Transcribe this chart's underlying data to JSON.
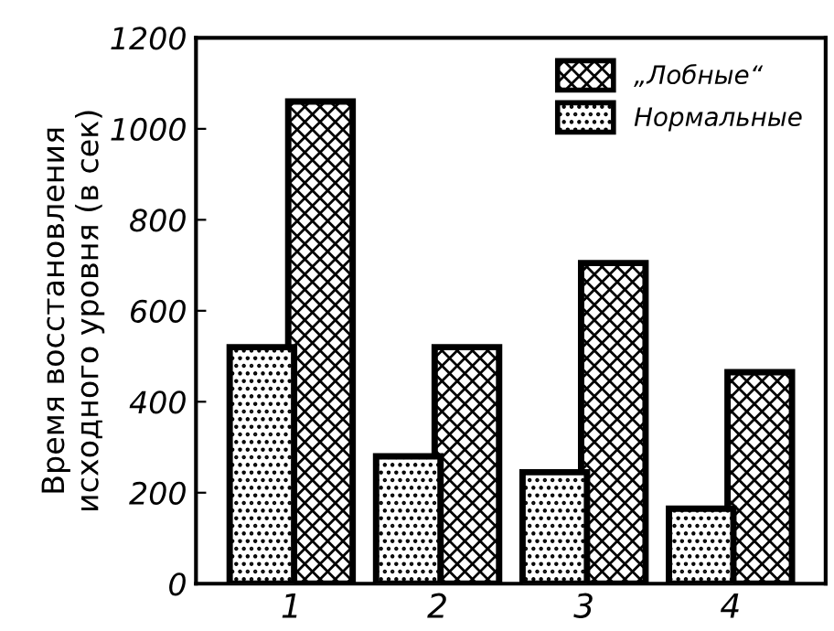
{
  "chart_data": {
    "type": "bar",
    "ylabel": "Время восстановления\nисходного уровня (в сек)",
    "categories": [
      "1",
      "2",
      "3",
      "4"
    ],
    "series": [
      {
        "name": "Нормальные",
        "color": "#000000",
        "values": [
          520,
          280,
          245,
          165
        ]
      },
      {
        "name": "„Лобные“",
        "color": "#000000",
        "values": [
          1060,
          520,
          705,
          465
        ]
      }
    ],
    "ylim": [
      0,
      1200
    ],
    "yticks": [
      0,
      200,
      400,
      600,
      800,
      1000,
      1200
    ],
    "grid": false,
    "legend": "top right"
  }
}
